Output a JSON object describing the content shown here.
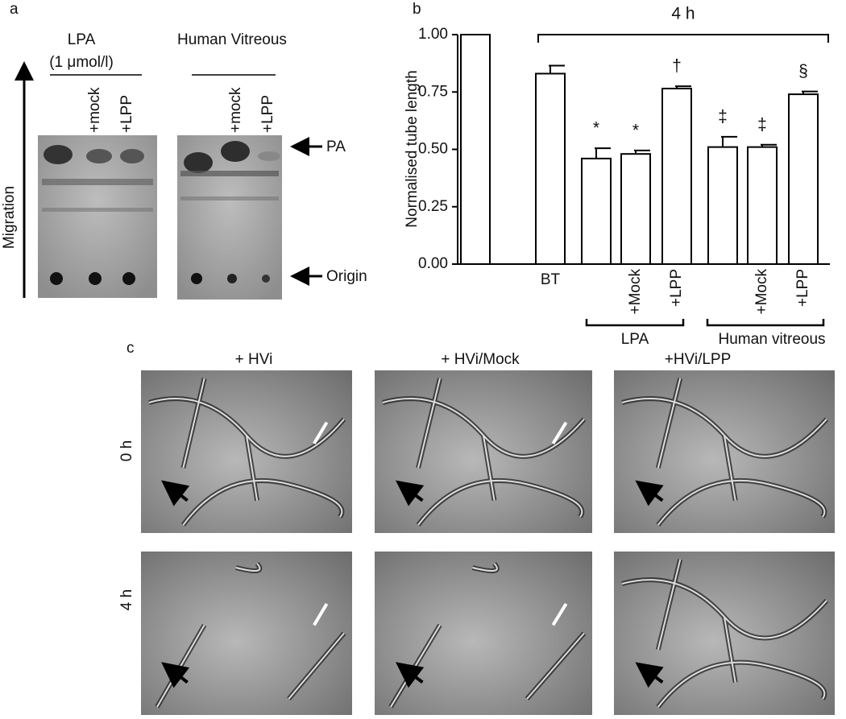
{
  "panel_a": {
    "letter": "a",
    "groups": [
      {
        "title": "LPA",
        "subtitle": "(1 μmol/l)",
        "lanes": [
          "+mock",
          "+LPP"
        ]
      },
      {
        "title": "Human Vitreous",
        "lanes": [
          "+mock",
          "+LPP"
        ]
      }
    ],
    "markers": [
      "PA",
      "Origin"
    ],
    "axis_label": "Migration"
  },
  "chart_data": {
    "type": "bar",
    "letter": "b",
    "ylabel": "Normalised tube length",
    "categories": [
      null,
      "BT",
      null,
      "+Mock",
      "+LPP",
      null,
      "+Mock",
      "+LPP"
    ],
    "values": [
      1.0,
      0.83,
      0.46,
      0.48,
      0.765,
      0.51,
      0.51,
      0.74
    ],
    "errors": [
      0,
      0.035,
      0.045,
      0.015,
      0.01,
      0.045,
      0.01,
      0.012
    ],
    "markers": [
      null,
      null,
      "*",
      "*",
      "†",
      "‡",
      "‡",
      "§"
    ],
    "bracket_label": "4 h",
    "groups": [
      "LPA",
      "Human vitreous"
    ],
    "color": "#ffffff",
    "ylim": [
      0,
      1
    ],
    "yticks": [
      {
        "value": 0,
        "label": "0.00"
      },
      0.25,
      {
        "value": 0.5,
        "label": "0.50"
      },
      0.75,
      {
        "value": 1,
        "label": "1.00"
      }
    ]
  },
  "panel_c": {
    "letter": "c",
    "columns": [
      "+ HVi",
      "+ HVi/Mock",
      "+HVi/LPP"
    ],
    "rows": [
      "0 h",
      "4 h"
    ]
  }
}
